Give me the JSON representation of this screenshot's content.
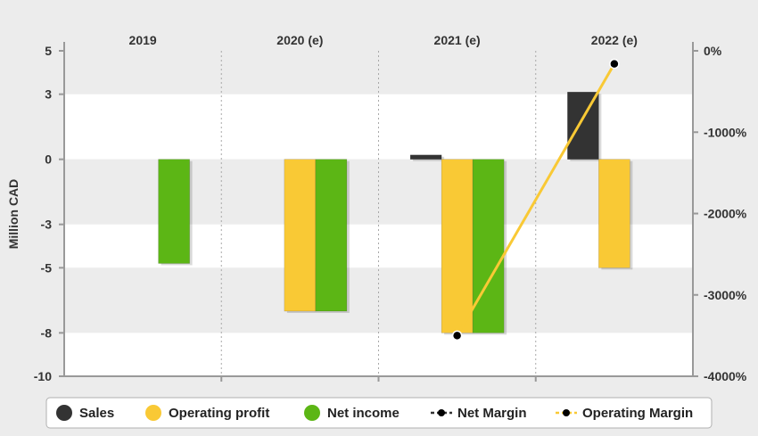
{
  "chart_data": {
    "type": "bar",
    "categories": [
      "2019",
      "2020 (e)",
      "2021 (e)",
      "2022 (e)"
    ],
    "ylabel": "Million CAD",
    "ylim": [
      -10,
      5
    ],
    "y_ticks": [
      "5",
      "3",
      "0",
      "-3",
      "-5",
      "-8",
      "-10"
    ],
    "y2lim": [
      -4000,
      0
    ],
    "y2_ticks": [
      "0%",
      "-1000%",
      "-2000%",
      "-3000%",
      "-4000%"
    ],
    "grid": "horizontal bands, vertical dotted separators",
    "legend_position": "bottom",
    "series": [
      {
        "name": "Sales",
        "kind": "bar",
        "color": "#333333",
        "values": [
          null,
          null,
          0.2,
          3.1
        ]
      },
      {
        "name": "Operating profit",
        "kind": "bar",
        "color": "#f9c935",
        "values": [
          null,
          -7.0,
          -8.0,
          -5.0
        ]
      },
      {
        "name": "Net income",
        "kind": "bar",
        "color": "#5cb615",
        "values": [
          -4.8,
          -7.0,
          -8.0,
          null
        ]
      },
      {
        "name": "Net Margin",
        "kind": "line",
        "axis": "right",
        "color": "#333333",
        "values": [
          null,
          null,
          null,
          null
        ]
      },
      {
        "name": "Operating Margin",
        "kind": "line",
        "axis": "right",
        "color": "#f9c935",
        "values": [
          null,
          null,
          -3500,
          -160
        ]
      }
    ]
  }
}
